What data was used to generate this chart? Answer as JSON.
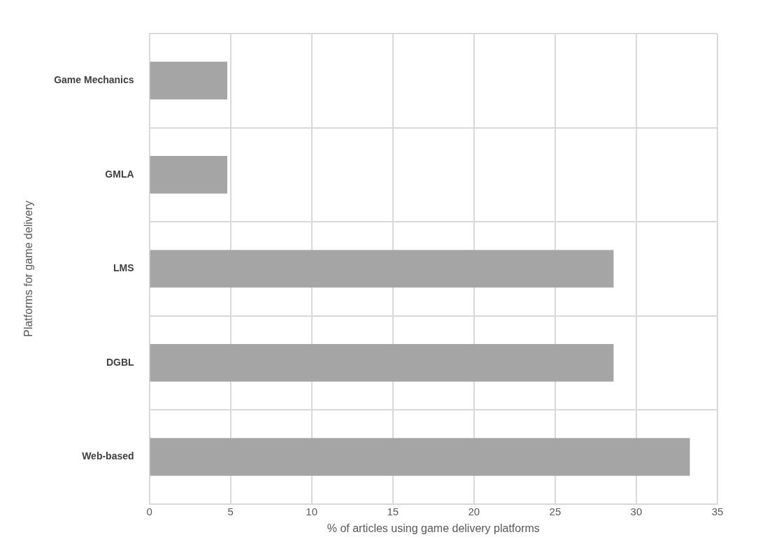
{
  "chart_data": {
    "type": "bar",
    "orientation": "horizontal",
    "xlabel": "% of articles using game delivery platforms",
    "ylabel": "Platforms for game delivery",
    "categories": [
      "Game Mechanics",
      "GMLA",
      "LMS",
      "DGBL",
      "Web-based"
    ],
    "values": [
      4.8,
      4.8,
      28.6,
      28.6,
      33.3
    ],
    "color": "#a5a5a5",
    "xlim": [
      0,
      35
    ],
    "xticks": [
      0,
      5,
      10,
      15,
      20,
      25,
      30,
      35
    ],
    "grid": true,
    "legend": false
  }
}
